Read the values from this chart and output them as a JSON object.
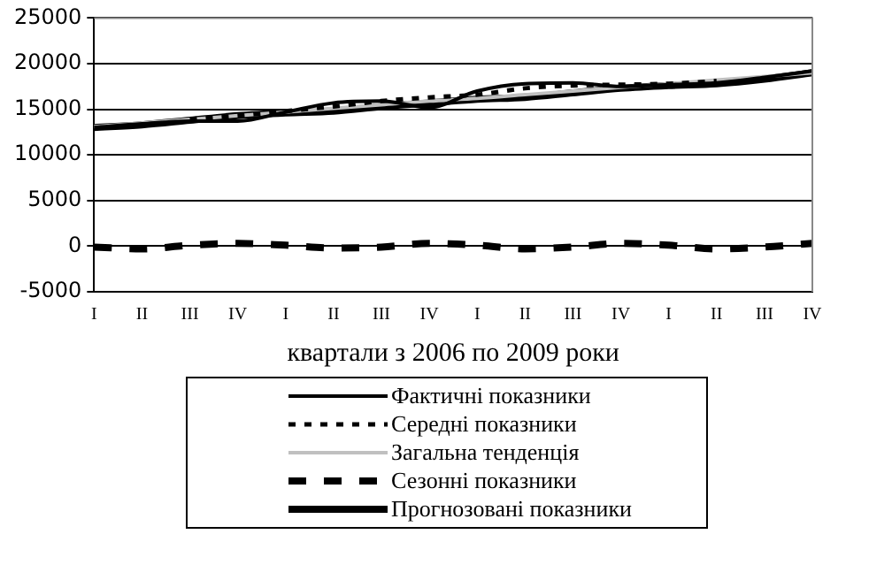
{
  "chart_data": {
    "type": "line",
    "xlabel": "квартали з 2006 по 2009 роки",
    "categories": [
      "I",
      "II",
      "III",
      "IV",
      "I",
      "II",
      "III",
      "IV",
      "I",
      "II",
      "III",
      "IV",
      "I",
      "II",
      "III",
      "IV"
    ],
    "ylim": [
      -5000,
      25000
    ],
    "yticks": [
      -5000,
      0,
      5000,
      10000,
      15000,
      20000,
      25000
    ],
    "grid": "y",
    "legend": "bottom",
    "marker": "none",
    "series": [
      {
        "name": "Фактичні показники",
        "color": "#000000",
        "line_style": "solid",
        "values": [
          13000,
          13400,
          13700,
          13700,
          14700,
          15700,
          15900,
          15200,
          17000,
          17800,
          17900,
          17500,
          17700,
          17900,
          18500,
          19200
        ]
      },
      {
        "name": "Середні показники",
        "color": "#000000",
        "line_style": "dotted",
        "values": [
          null,
          null,
          13900,
          14300,
          14800,
          15300,
          15900,
          16300,
          16600,
          17300,
          17600,
          17700,
          17800,
          18100,
          null,
          null
        ]
      },
      {
        "name": "Загальна тенденція",
        "color": "#c0c0c0",
        "line_style": "solid",
        "values": [
          13100,
          13500,
          13900,
          14300,
          14700,
          15100,
          15500,
          15900,
          16200,
          16600,
          17000,
          17400,
          17800,
          18200,
          18600,
          19000
        ]
      },
      {
        "name": "Сезонні показники",
        "color": "#000000",
        "line_style": "dashed",
        "values": [
          -100,
          -300,
          100,
          300,
          100,
          -200,
          -100,
          300,
          100,
          -300,
          -100,
          300,
          100,
          -300,
          -100,
          300
        ]
      },
      {
        "name": "Прогнозовані показники",
        "color": "#000000",
        "line_style": "solid",
        "values": [
          13000,
          13300,
          13800,
          14300,
          14600,
          14800,
          15300,
          15700,
          16100,
          16300,
          16800,
          17300,
          17600,
          17800,
          18300,
          19000
        ]
      }
    ]
  }
}
